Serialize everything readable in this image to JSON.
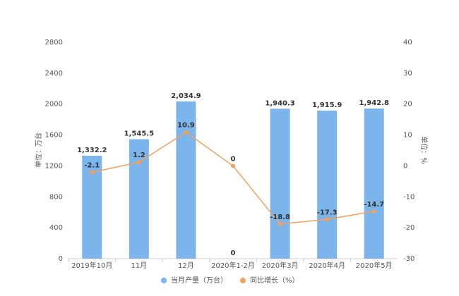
{
  "chart_data": {
    "type": "bar",
    "categories": [
      "2019年10月",
      "11月",
      "12月",
      "2020年1-2月",
      "2020年3月",
      "2020年4月",
      "2020年5月"
    ],
    "series": [
      {
        "name": "当月产量（万台）",
        "type": "bar",
        "color": "#7cb5ec",
        "values": [
          1332.2,
          1545.5,
          2034.9,
          0,
          1940.3,
          1915.9,
          1942.8
        ],
        "value_labels": [
          "1,332.2",
          "1,545.5",
          "2,034.9",
          "0",
          "1,940.3",
          "1,915.9",
          "1,942.8"
        ]
      },
      {
        "name": "同比增长（%）",
        "type": "line",
        "axis": "y2",
        "color": "#f4a15d",
        "values": [
          -2.1,
          1.2,
          10.9,
          0,
          -18.8,
          -17.3,
          -14.7
        ]
      }
    ],
    "ylabel": "单位：万台",
    "y2label": "单位：%",
    "ylim": [
      0,
      2800
    ],
    "yticks": [
      0,
      400,
      800,
      1200,
      1600,
      2000,
      2400,
      2800
    ],
    "y2lim": [
      -30,
      40
    ],
    "y2ticks": [
      -30,
      -20,
      -10,
      0,
      10,
      20,
      30,
      40
    ]
  }
}
